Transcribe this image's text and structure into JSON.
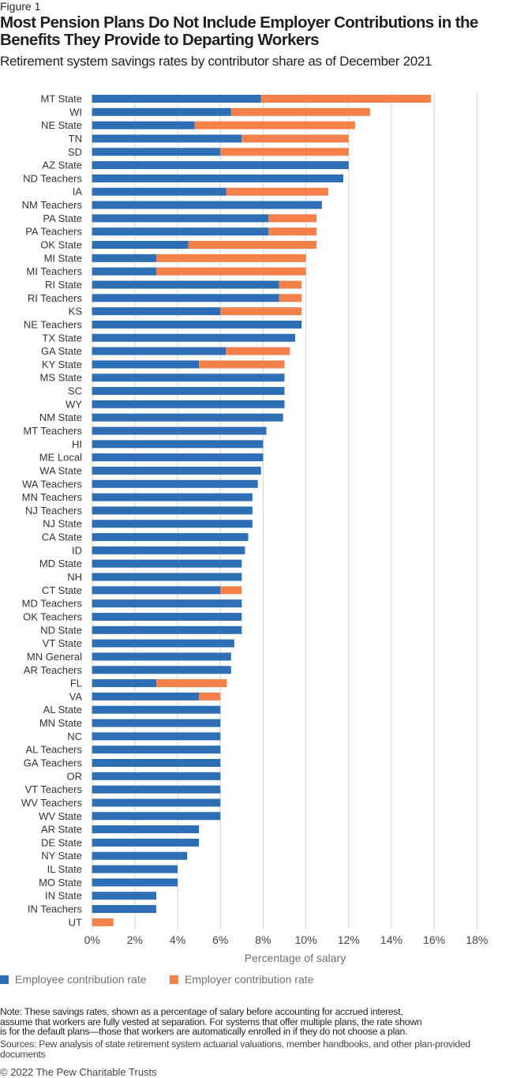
{
  "figure_label": "Figure 1",
  "chart_data": {
    "type": "bar",
    "orientation": "horizontal",
    "stacked": true,
    "title": "Most Pension Plans Do Not Include Employer Contributions in the Benefits They Provide to Departing Workers",
    "subtitle": "Retirement system savings rates by contributor share as of December 2021",
    "xlabel": "Percentage of salary",
    "ylabel": "",
    "xlim": [
      0,
      18
    ],
    "xticks": [
      "0%",
      "2%",
      "4%",
      "6%",
      "8%",
      "10%",
      "12%",
      "14%",
      "16%",
      "18%"
    ],
    "grid": true,
    "legend_position": "bottom-left",
    "categories": [
      "MT State",
      "WI",
      "NE State",
      "TN",
      "SD",
      "AZ State",
      "ND Teachers",
      "IA",
      "NM Teachers",
      "PA State",
      "PA Teachers",
      "OK State",
      "MI State",
      "MI Teachers",
      "RI State",
      "RI Teachers",
      "KS",
      "NE Teachers",
      "TX State",
      "GA State",
      "KY State",
      "MS State",
      "SC",
      "WY",
      "NM State",
      "MT Teachers",
      "HI",
      "ME Local",
      "WA State",
      "WA Teachers",
      "MN Teachers",
      "NJ Teachers",
      "NJ State",
      "CA State",
      "ID",
      "MD State",
      "NH",
      "CT State",
      "MD Teachers",
      "OK Teachers",
      "ND State",
      "VT State",
      "MN General",
      "AR Teachers",
      "FL",
      "VA",
      "AL State",
      "MN State",
      "NC",
      "AL Teachers",
      "GA Teachers",
      "OR",
      "VT Teachers",
      "WV Teachers",
      "WV State",
      "AR State",
      "DE State",
      "NY State",
      "IL State",
      "MO State",
      "IN State",
      "IN Teachers",
      "UT"
    ],
    "series": [
      {
        "name": "Employee contribution rate",
        "color": "#2e6eb5",
        "values": [
          7.9,
          6.5,
          4.8,
          7,
          6,
          12,
          11.75,
          6.28,
          10.75,
          8.25,
          8.25,
          4.5,
          3,
          3,
          8.75,
          8.75,
          6,
          9.8,
          9.5,
          6.25,
          5,
          9,
          9,
          9,
          8.93,
          8.15,
          8,
          8,
          7.9,
          7.75,
          7.5,
          7.5,
          7.5,
          7.3,
          7.15,
          7,
          7,
          6,
          7,
          7,
          7,
          6.65,
          6.5,
          6.5,
          3,
          5,
          6,
          6,
          6,
          6,
          6,
          6,
          6,
          6,
          6,
          5,
          5,
          4.45,
          4,
          4,
          3,
          3,
          0
        ]
      },
      {
        "name": "Employer contribution rate",
        "color": "#f4804a",
        "values": [
          7.95,
          6.5,
          7.5,
          5,
          6,
          0,
          0,
          4.77,
          0,
          2.25,
          2.25,
          6,
          7,
          7,
          1.05,
          1.05,
          3.8,
          0,
          0,
          3,
          4,
          0,
          0,
          0,
          0,
          0,
          0,
          0,
          0,
          0,
          0,
          0,
          0,
          0,
          0,
          0,
          0,
          1,
          0,
          0,
          0,
          0,
          0,
          0,
          3.3,
          1,
          0,
          0,
          0,
          0,
          0,
          0,
          0,
          0,
          0,
          0,
          0,
          0,
          0,
          0,
          0,
          0,
          1
        ]
      }
    ]
  },
  "note": "Note: These savings rates, shown as a percentage of salary before accounting for accrued interest, assume that workers are fully vested at separation. For systems that offer multiple plans, the rate shown is for the default plans—those that workers are automatically enrolled in if they do not choose a plan.",
  "sources": "Sources: Pew analysis of state retirement system actuarial valuations, member handbooks, and other plan-provided documents",
  "copyright": "© 2022 The Pew Charitable Trusts"
}
